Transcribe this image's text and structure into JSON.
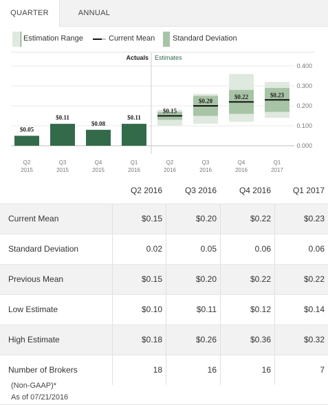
{
  "tabs": [
    {
      "label": "QUARTER",
      "active": true
    },
    {
      "label": "ANNUAL",
      "active": false
    }
  ],
  "legend": {
    "estimation_range": "Estimation Range",
    "current_mean": "Current Mean",
    "standard_deviation": "Standard Deviation"
  },
  "chart_data": {
    "type": "bar",
    "section_labels": {
      "actuals": "Actuals",
      "estimates": "Estimates"
    },
    "y_ticks": [
      "0.400",
      "0.300",
      "0.200",
      "0.100",
      "0.000"
    ],
    "ylim": [
      0,
      0.4
    ],
    "categories": [
      {
        "q": "Q2",
        "y": "2015"
      },
      {
        "q": "Q3",
        "y": "2015"
      },
      {
        "q": "Q4",
        "y": "2015"
      },
      {
        "q": "Q1",
        "y": "2016"
      },
      {
        "q": "Q2",
        "y": "2016"
      },
      {
        "q": "Q3",
        "y": "2016"
      },
      {
        "q": "Q4",
        "y": "2016"
      },
      {
        "q": "Q1",
        "y": "2017"
      }
    ],
    "actuals": [
      {
        "value": 0.05,
        "label": "$0.05"
      },
      {
        "value": 0.11,
        "label": "$0.11"
      },
      {
        "value": 0.08,
        "label": "$0.08"
      },
      {
        "value": 0.11,
        "label": "$0.11"
      }
    ],
    "estimates": [
      {
        "low": 0.1,
        "high": 0.18,
        "mean": 0.15,
        "sd": 0.02,
        "label": "$0.15"
      },
      {
        "low": 0.11,
        "high": 0.26,
        "mean": 0.2,
        "sd": 0.05,
        "label": "$0.20"
      },
      {
        "low": 0.12,
        "high": 0.36,
        "mean": 0.22,
        "sd": 0.06,
        "label": "$0.22"
      },
      {
        "low": 0.14,
        "high": 0.32,
        "mean": 0.23,
        "sd": 0.06,
        "label": "$0.23"
      }
    ],
    "colors": {
      "actual": "#336b4a",
      "range": "#dfe9df",
      "sd": "#a8c4a6",
      "mean": "#111111"
    }
  },
  "table": {
    "headers": [
      "Q2 2016",
      "Q3 2016",
      "Q4 2016",
      "Q1 2017"
    ],
    "rows": [
      {
        "label": "Current Mean",
        "values": [
          "$0.15",
          "$0.20",
          "$0.22",
          "$0.23"
        ]
      },
      {
        "label": "Standard Deviation",
        "values": [
          "0.02",
          "0.05",
          "0.06",
          "0.06"
        ]
      },
      {
        "label": "Previous Mean",
        "values": [
          "$0.15",
          "$0.20",
          "$0.22",
          "$0.22"
        ]
      },
      {
        "label": "Low Estimate",
        "values": [
          "$0.10",
          "$0.11",
          "$0.12",
          "$0.14"
        ]
      },
      {
        "label": "High Estimate",
        "values": [
          "$0.18",
          "$0.26",
          "$0.36",
          "$0.32"
        ]
      },
      {
        "label": "Number of Brokers",
        "values": [
          "18",
          "16",
          "16",
          "7"
        ]
      }
    ]
  },
  "footer": {
    "note": "(Non-GAAP)*",
    "as_of": "As of 07/21/2016"
  }
}
